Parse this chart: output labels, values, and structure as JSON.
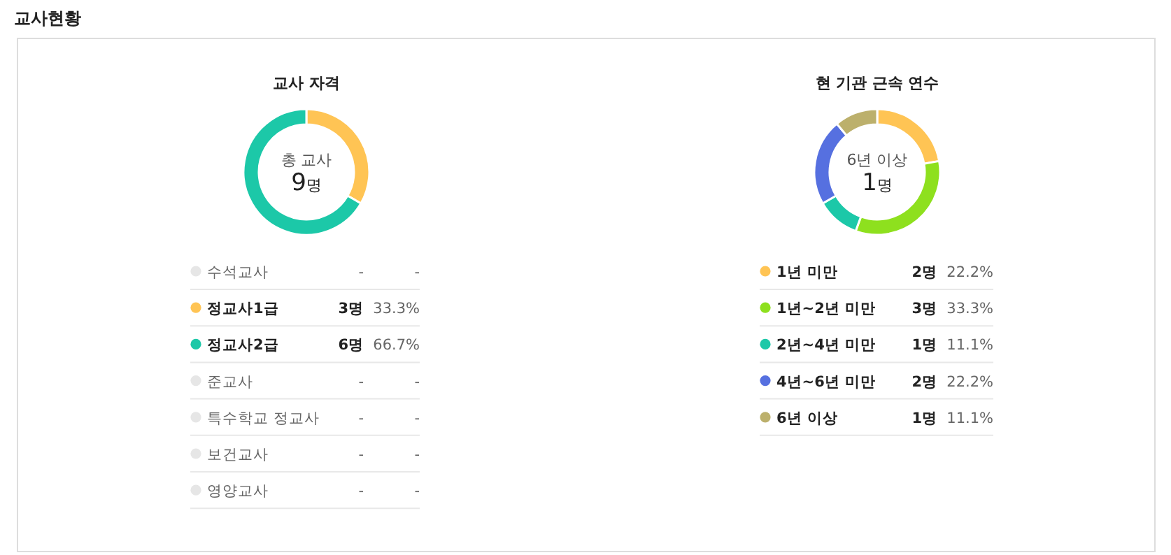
{
  "chart_data": [
    {
      "type": "donut",
      "title": "교사 자격",
      "legend": "bottom",
      "categories": [
        "수석교사",
        "정교사1급",
        "정교사2급",
        "준교사",
        "특수학교 정교사",
        "보건교사",
        "영양교사"
      ],
      "values": [
        null,
        3,
        6,
        null,
        null,
        null,
        null
      ],
      "colors": [
        "#e6e6e6",
        "#ffc454",
        "#1cc8a8",
        "#e6e6e6",
        "#e6e6e6",
        "#e6e6e6",
        "#e6e6e6"
      ],
      "value_labels": [
        "- -",
        "3명 33.3%",
        "6명 66.7%",
        "- -",
        "- -",
        "- -",
        "- -"
      ],
      "annotations": [
        "교사현황",
        "총 교사",
        "9명"
      ]
    },
    {
      "type": "donut",
      "title": "현 기관 근속 연수",
      "legend": "bottom",
      "categories": [
        "1년 미만",
        "1년~2년 미만",
        "2년~4년 미만",
        "4년~6년 미만",
        "6년 이상"
      ],
      "values": [
        2,
        3,
        1,
        2,
        1
      ],
      "colors": [
        "#ffc454",
        "#8ee01e",
        "#1cc8a8",
        "#5670e0",
        "#bcb06c"
      ],
      "value_labels": [
        "2명 22.2%",
        "3명 33.3%",
        "1명 11.1%",
        "2명 22.2%",
        "1명 11.1%"
      ],
      "annotations": [
        "6년 이상",
        "1명"
      ]
    }
  ]
}
